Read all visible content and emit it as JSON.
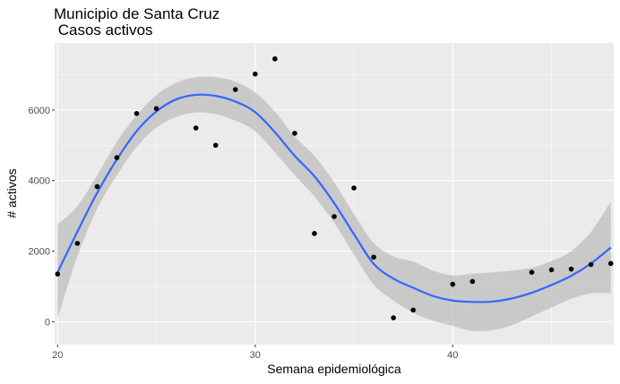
{
  "chart_data": {
    "type": "scatter",
    "title": "Municipio de Santa Cruz",
    "subtitle": " Casos activos",
    "xlabel": "Semana epidemiológica",
    "ylabel": "# activos",
    "xlim": [
      19.85,
      48.15
    ],
    "ylim": [
      -650,
      7900
    ],
    "x_ticks": [
      20,
      30,
      40
    ],
    "y_ticks": [
      0,
      2000,
      4000,
      6000
    ],
    "grid": true,
    "colors": {
      "panel": "#ebebeb",
      "grid": "#ffffff",
      "points": "#000000",
      "smooth_line": "#3366ff",
      "ribbon": "#bebebe"
    },
    "points": [
      {
        "x": 20,
        "y": 1350
      },
      {
        "x": 21,
        "y": 2220
      },
      {
        "x": 22,
        "y": 3830
      },
      {
        "x": 23,
        "y": 4650
      },
      {
        "x": 24,
        "y": 5900
      },
      {
        "x": 25,
        "y": 6040
      },
      {
        "x": 27,
        "y": 5490
      },
      {
        "x": 28,
        "y": 5000
      },
      {
        "x": 29,
        "y": 6580
      },
      {
        "x": 30,
        "y": 7020
      },
      {
        "x": 31,
        "y": 7450
      },
      {
        "x": 32,
        "y": 5340
      },
      {
        "x": 33,
        "y": 2500
      },
      {
        "x": 34,
        "y": 2980
      },
      {
        "x": 35,
        "y": 3790
      },
      {
        "x": 36,
        "y": 1830
      },
      {
        "x": 37,
        "y": 110
      },
      {
        "x": 38,
        "y": 330
      },
      {
        "x": 40,
        "y": 1060
      },
      {
        "x": 41,
        "y": 1140
      },
      {
        "x": 44,
        "y": 1400
      },
      {
        "x": 45,
        "y": 1470
      },
      {
        "x": 46,
        "y": 1490
      },
      {
        "x": 47,
        "y": 1620
      },
      {
        "x": 48,
        "y": 1650
      }
    ],
    "smooth": {
      "x": [
        20,
        21,
        22,
        23,
        24,
        25,
        26,
        27,
        28,
        29,
        30,
        31,
        32,
        33,
        34,
        35,
        36,
        37,
        38,
        39,
        40,
        41,
        42,
        43,
        44,
        45,
        46,
        47,
        48
      ],
      "y": [
        1400,
        2550,
        3650,
        4600,
        5400,
        5960,
        6300,
        6430,
        6400,
        6240,
        5940,
        5370,
        4700,
        4120,
        3360,
        2480,
        1640,
        1220,
        960,
        730,
        600,
        560,
        570,
        660,
        820,
        1040,
        1300,
        1650,
        2100
      ],
      "lower": [
        100,
        1850,
        3200,
        4150,
        4950,
        5500,
        5800,
        5930,
        5880,
        5700,
        5400,
        4800,
        4150,
        3550,
        2800,
        1900,
        1050,
        600,
        250,
        30,
        -120,
        -260,
        -240,
        -100,
        150,
        400,
        650,
        800,
        800
      ],
      "upper": [
        2750,
        3280,
        4150,
        5100,
        5850,
        6420,
        6770,
        6930,
        6930,
        6800,
        6500,
        5950,
        5250,
        4700,
        3950,
        3050,
        2230,
        1850,
        1700,
        1450,
        1310,
        1360,
        1400,
        1450,
        1530,
        1720,
        2000,
        2550,
        3400
      ]
    }
  }
}
